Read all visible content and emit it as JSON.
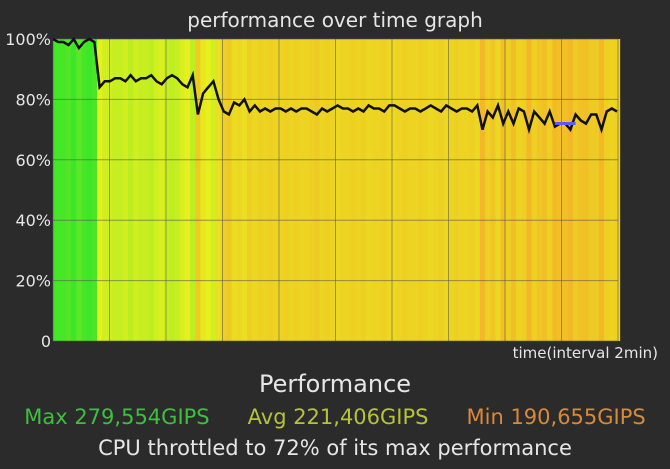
{
  "title": "performance over time graph",
  "x_axis_label": "time(interval 2min)",
  "y_axis_ticks": [
    "0",
    "20%",
    "40%",
    "60%",
    "80%",
    "100%"
  ],
  "summary": {
    "heading": "Performance",
    "max": "Max 279,554GIPS",
    "avg": "Avg 221,406GIPS",
    "min": "Min 190,655GIPS",
    "throttle_note": "CPU throttled to 72% of its max performance"
  },
  "colors": {
    "background": "#2b2b2b",
    "plot_background": "#f1f1dc",
    "grid": "#555555",
    "line": "#111111",
    "max_text": "#3fbf3f",
    "avg_text": "#b7c23a",
    "min_text": "#d9893a",
    "marker": "#5a5aff"
  },
  "chart_data": {
    "type": "line",
    "title": "performance over time graph",
    "xlabel": "time(interval 2min)",
    "ylabel": "",
    "ylim": [
      0,
      100
    ],
    "y_ticks": [
      0,
      20,
      40,
      60,
      80,
      100
    ],
    "series": [
      {
        "values": [
          100,
          99,
          99,
          98,
          100,
          97,
          99,
          100,
          99,
          84,
          86,
          86,
          87,
          87,
          86,
          88,
          86,
          87,
          87,
          88,
          86,
          85,
          87,
          88,
          87,
          85,
          84,
          88,
          75,
          82,
          84,
          86,
          80,
          76,
          75,
          79,
          78,
          80,
          76,
          78,
          76,
          77,
          76,
          77,
          77,
          76,
          77,
          76,
          77,
          77,
          76,
          75,
          77,
          76,
          77,
          78,
          77,
          77,
          76,
          77,
          76,
          78,
          77,
          77,
          76,
          78,
          78,
          77,
          76,
          77,
          77,
          76,
          77,
          78,
          77,
          76,
          78,
          77,
          76,
          77,
          77,
          76,
          78,
          70,
          76,
          74,
          78,
          72,
          76,
          72,
          77,
          76,
          70,
          76,
          74,
          72,
          76,
          71,
          72,
          72,
          70,
          75,
          73,
          72,
          75,
          75,
          70,
          76,
          77,
          76
        ]
      }
    ],
    "highlight_segment": {
      "start_index": 97,
      "end_index": 101,
      "value": 72
    }
  }
}
